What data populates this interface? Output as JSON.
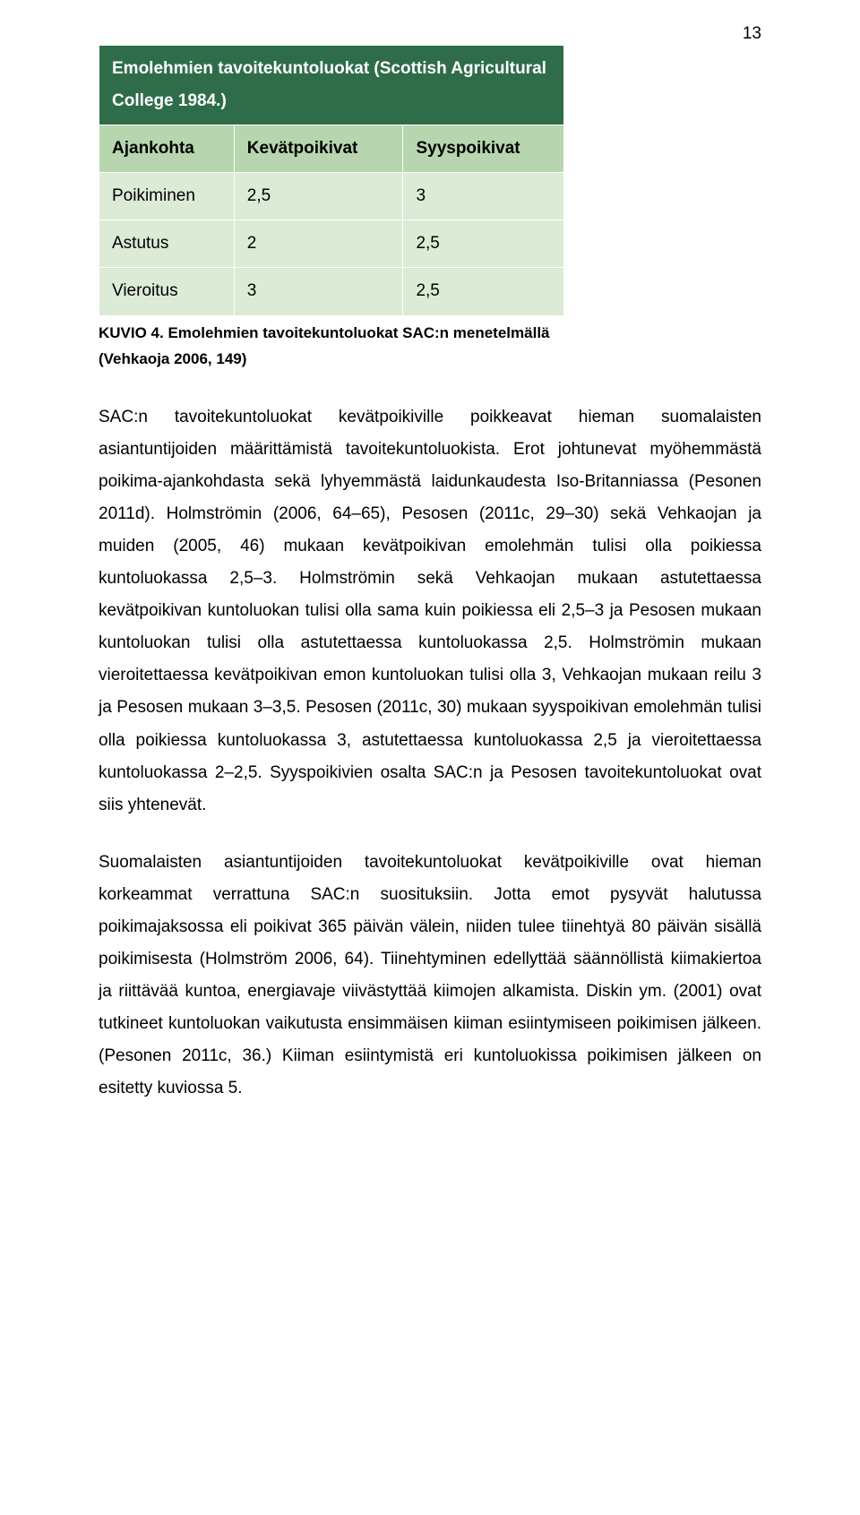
{
  "page_number": "13",
  "table": {
    "title": "Emolehmien tavoitekuntoluokat (Scottish Agricultural College 1984.)",
    "headers": [
      "Ajankohta",
      "Kevätpoikivat",
      "Syyspoikivat"
    ],
    "rows": [
      {
        "label": "Poikiminen",
        "c1": "2,5",
        "c2": "3"
      },
      {
        "label": "Astutus",
        "c1": "2",
        "c2": "2,5"
      },
      {
        "label": "Vieroitus",
        "c1": "3",
        "c2": "2,5"
      }
    ]
  },
  "caption_line1": "KUVIO 4. Emolehmien tavoitekuntoluokat SAC:n menetelmällä",
  "caption_line2": "(Vehkaoja 2006, 149)",
  "para1": "SAC:n tavoitekuntoluokat kevätpoikiville poikkeavat hieman suomalaisten asiantuntijoiden määrittämistä tavoitekuntoluokista. Erot johtunevat myöhemmästä poikima-ajankohdasta sekä lyhyemmästä laidunkaudesta Iso-Britanniassa (Pesonen 2011d). Holmströmin (2006, 64–65), Pesosen (2011c, 29–30) sekä Vehkaojan ja muiden (2005, 46) mukaan kevätpoikivan emolehmän tulisi olla poikiessa kuntoluokassa 2,5–3. Holmströmin sekä Vehkaojan mukaan astutettaessa kevätpoikivan kuntoluokan tulisi olla sama kuin poikiessa eli 2,5–3 ja Pesosen mukaan kuntoluokan tulisi olla astutettaessa kuntoluokassa 2,5. Holmströmin mukaan vieroitettaessa kevätpoikivan emon kuntoluokan tulisi olla 3, Vehkaojan mukaan reilu 3 ja Pesosen mukaan 3–3,5. Pesosen (2011c, 30) mukaan syyspoikivan emolehmän tulisi olla poikiessa kuntoluokassa 3, astutettaessa kuntoluokassa 2,5 ja vieroitettaessa kuntoluokassa 2–2,5. Syyspoikivien osalta SAC:n ja Pesosen tavoitekuntoluokat ovat siis yhtenevät.",
  "para2": "Suomalaisten asiantuntijoiden tavoitekuntoluokat kevätpoikiville ovat hieman korkeammat verrattuna SAC:n suosituksiin. Jotta emot pysyvät halutussa poikimajaksossa eli poikivat 365 päivän välein, niiden tulee tiinehtyä 80 päivän sisällä poikimisesta (Holmström 2006, 64). Tiinehtyminen edellyttää säännöllistä kiimakiertoa ja riittävää kuntoa, energiavaje viivästyttää kiimojen alkamista. Diskin ym. (2001) ovat tutkineet kuntoluokan vaikutusta ensimmäisen kiiman esiintymiseen poikimisen jälkeen. (Pesonen 2011c, 36.) Kiiman esiintymistä eri kuntoluokissa poikimisen jälkeen on esitetty kuviossa 5."
}
